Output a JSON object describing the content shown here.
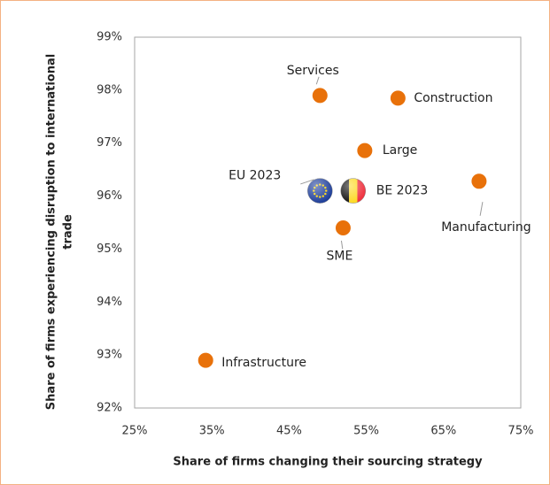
{
  "chart_data": {
    "type": "scatter",
    "xlabel": "Share of firms changing their sourcing strategy",
    "ylabel": [
      "Share of firms experiencing disruption to international",
      "trade"
    ],
    "categories": [
      "Services",
      "Construction",
      "Large",
      "Manufacturing",
      "EU 2023",
      "BE 2023",
      "SME",
      "Infrastructure"
    ],
    "x": [
      49,
      59.1,
      54.8,
      69.6,
      49,
      53.3,
      52,
      34.2
    ],
    "values": [
      97.9,
      97.85,
      96.86,
      96.28,
      96.1,
      96.1,
      95.4,
      92.9
    ],
    "markers": [
      "circle",
      "circle",
      "circle",
      "circle",
      "eu-flag",
      "be-flag",
      "circle",
      "circle"
    ],
    "color": "#e8710a",
    "xlim": [
      25,
      75
    ],
    "xticks": [
      {
        "value": 25,
        "label": "25%"
      },
      {
        "value": 35,
        "label": "35%"
      },
      {
        "value": 45,
        "label": "45%"
      },
      {
        "value": 55,
        "label": "55%"
      },
      {
        "value": 65,
        "label": "65%"
      },
      {
        "value": 75,
        "label": "75%"
      }
    ],
    "ylim": [
      92,
      99
    ],
    "yticks": [
      {
        "value": 92,
        "label": "92%"
      },
      {
        "value": 93,
        "label": "93%"
      },
      {
        "value": 94,
        "label": "94%"
      },
      {
        "value": 95,
        "label": "95%"
      },
      {
        "value": 96,
        "label": "96%"
      },
      {
        "value": 97,
        "label": "97%"
      },
      {
        "value": 98,
        "label": "98%"
      },
      {
        "value": 99,
        "label": "99%"
      }
    ],
    "grid": false
  }
}
